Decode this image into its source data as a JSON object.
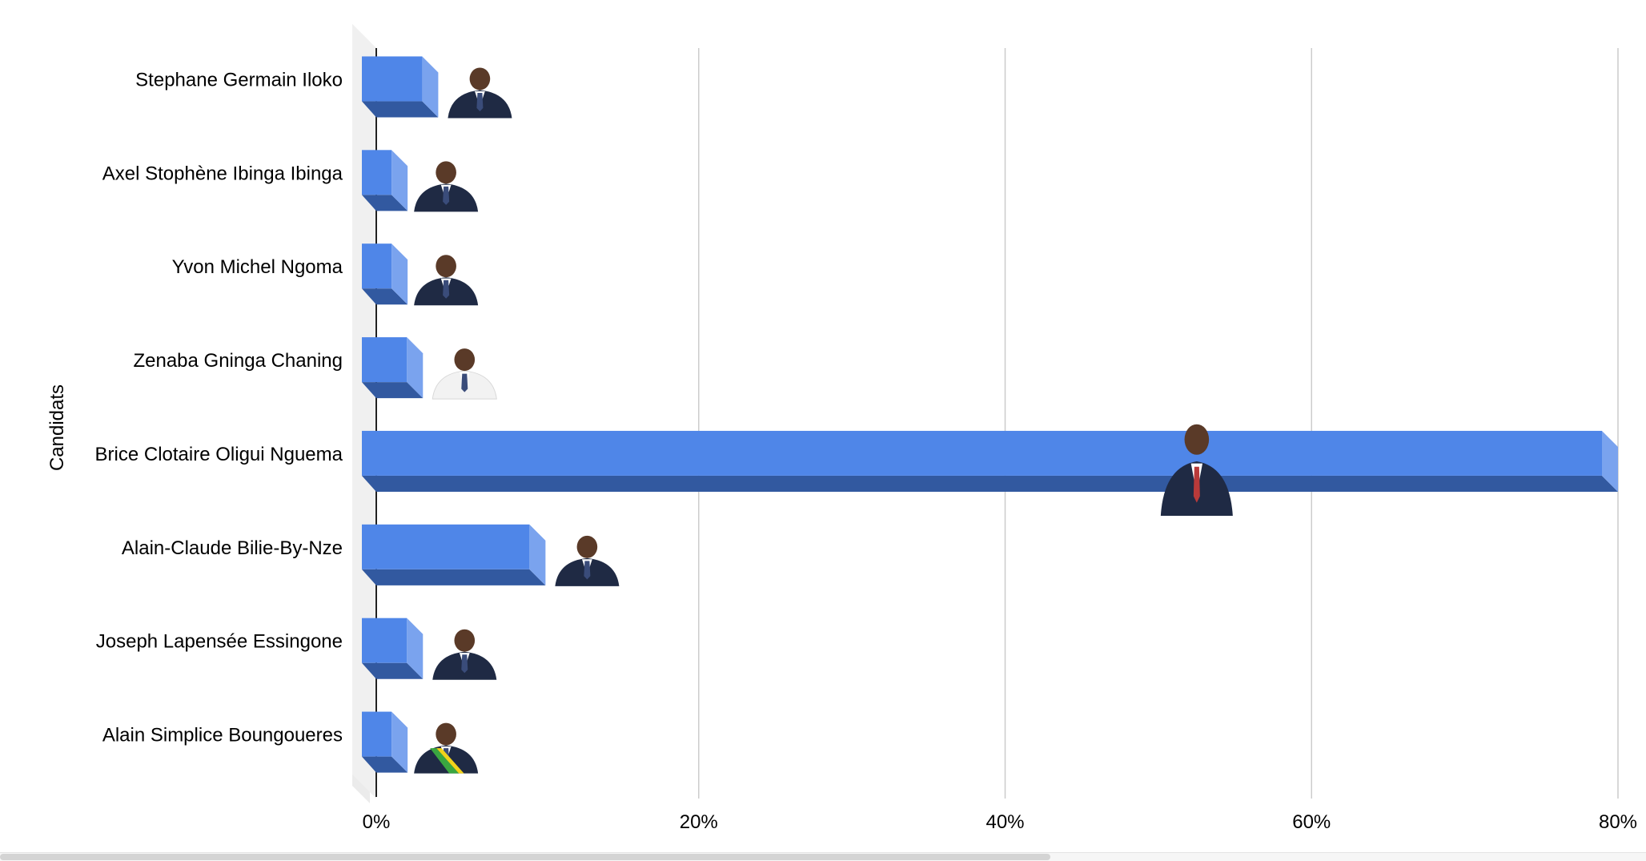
{
  "chart_data": {
    "type": "bar",
    "orientation": "horizontal",
    "style": "3d",
    "categories": [
      "Stephane Germain Iloko",
      "Axel Stophène Ibinga Ibinga",
      "Yvon Michel Ngoma",
      "Zenaba Gninga Chaning",
      "Brice Clotaire Oligui Nguema",
      "Alain-Claude Bilie-By-Nze",
      "Joseph Lapensée Essingone",
      "Alain Simplice Boungoueres"
    ],
    "values": [
      3.0,
      1.0,
      1.0,
      2.0,
      80.0,
      10.0,
      2.0,
      1.0
    ],
    "xlim": [
      0,
      80
    ],
    "x_ticks": [
      "0%",
      "20%",
      "40%",
      "60%",
      "80%"
    ],
    "x_tick_values": [
      0,
      20,
      40,
      60,
      80
    ],
    "ylabel": "Candidats",
    "xlabel": "",
    "grid": "vertical",
    "legend": "none",
    "candidate_photos": true,
    "colors": {
      "bar_front": "#4f86e8",
      "bar_side": "#7aa3ee",
      "bar_bottom": "#3259a0",
      "grid": "#cccccc",
      "floor": "#ebebeb",
      "axis": "#222222"
    }
  }
}
